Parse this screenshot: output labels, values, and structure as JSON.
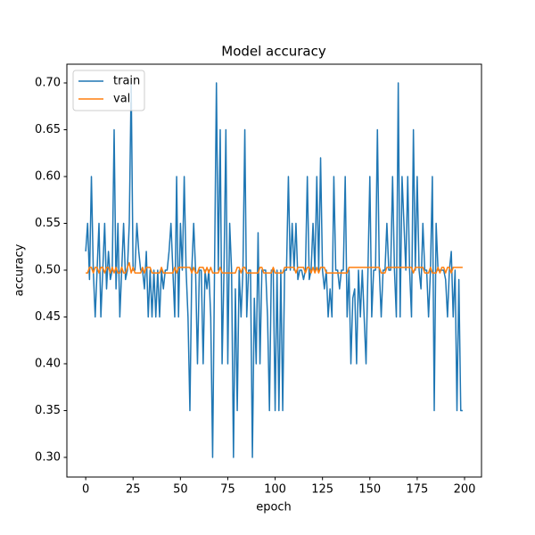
{
  "chart_data": {
    "type": "line",
    "title": "Model accuracy",
    "xlabel": "epoch",
    "ylabel": "accuracy",
    "x": [
      0,
      1,
      2,
      3,
      4,
      5,
      6,
      7,
      8,
      9,
      10,
      11,
      12,
      13,
      14,
      15,
      16,
      17,
      18,
      19,
      20,
      21,
      22,
      23,
      24,
      25,
      26,
      27,
      28,
      29,
      30,
      31,
      32,
      33,
      34,
      35,
      36,
      37,
      38,
      39,
      40,
      41,
      42,
      43,
      44,
      45,
      46,
      47,
      48,
      49,
      50,
      51,
      52,
      53,
      54,
      55,
      56,
      57,
      58,
      59,
      60,
      61,
      62,
      63,
      64,
      65,
      66,
      67,
      68,
      69,
      70,
      71,
      72,
      73,
      74,
      75,
      76,
      77,
      78,
      79,
      80,
      81,
      82,
      83,
      84,
      85,
      86,
      87,
      88,
      89,
      90,
      91,
      92,
      93,
      94,
      95,
      96,
      97,
      98,
      99,
      100,
      101,
      102,
      103,
      104,
      105,
      106,
      107,
      108,
      109,
      110,
      111,
      112,
      113,
      114,
      115,
      116,
      117,
      118,
      119,
      120,
      121,
      122,
      123,
      124,
      125,
      126,
      127,
      128,
      129,
      130,
      131,
      132,
      133,
      134,
      135,
      136,
      137,
      138,
      139,
      140,
      141,
      142,
      143,
      144,
      145,
      146,
      147,
      148,
      149,
      150,
      151,
      152,
      153,
      154,
      155,
      156,
      157,
      158,
      159,
      160,
      161,
      162,
      163,
      164,
      165,
      166,
      167,
      168,
      169,
      170,
      171,
      172,
      173,
      174,
      175,
      176,
      177,
      178,
      179,
      180,
      181,
      182,
      183,
      184,
      185,
      186,
      187,
      188,
      189,
      190,
      191,
      192,
      193,
      194,
      195,
      196,
      197,
      198,
      199
    ],
    "series": [
      {
        "name": "train",
        "color": "#1f77b4",
        "values": [
          0.52,
          0.55,
          0.49,
          0.6,
          0.5,
          0.45,
          0.5,
          0.55,
          0.45,
          0.5,
          0.55,
          0.48,
          0.52,
          0.49,
          0.5,
          0.65,
          0.48,
          0.55,
          0.45,
          0.5,
          0.55,
          0.49,
          0.5,
          0.55,
          0.7,
          0.5,
          0.5,
          0.55,
          0.52,
          0.5,
          0.5,
          0.48,
          0.52,
          0.45,
          0.5,
          0.45,
          0.5,
          0.45,
          0.5,
          0.45,
          0.5,
          0.48,
          0.5,
          0.5,
          0.52,
          0.55,
          0.5,
          0.45,
          0.6,
          0.45,
          0.55,
          0.5,
          0.6,
          0.5,
          0.45,
          0.35,
          0.5,
          0.55,
          0.5,
          0.4,
          0.5,
          0.5,
          0.4,
          0.5,
          0.48,
          0.5,
          0.45,
          0.3,
          0.5,
          0.7,
          0.5,
          0.65,
          0.4,
          0.5,
          0.65,
          0.4,
          0.55,
          0.5,
          0.3,
          0.48,
          0.35,
          0.5,
          0.45,
          0.5,
          0.65,
          0.45,
          0.5,
          0.5,
          0.3,
          0.47,
          0.4,
          0.54,
          0.4,
          0.5,
          0.5,
          0.5,
          0.45,
          0.35,
          0.5,
          0.5,
          0.35,
          0.5,
          0.35,
          0.5,
          0.35,
          0.5,
          0.5,
          0.6,
          0.5,
          0.55,
          0.5,
          0.55,
          0.49,
          0.5,
          0.5,
          0.49,
          0.5,
          0.6,
          0.49,
          0.5,
          0.55,
          0.5,
          0.6,
          0.5,
          0.62,
          0.5,
          0.48,
          0.5,
          0.45,
          0.48,
          0.45,
          0.6,
          0.5,
          0.5,
          0.48,
          0.5,
          0.5,
          0.6,
          0.45,
          0.5,
          0.4,
          0.47,
          0.48,
          0.4,
          0.5,
          0.45,
          0.5,
          0.45,
          0.4,
          0.5,
          0.6,
          0.45,
          0.5,
          0.5,
          0.65,
          0.5,
          0.45,
          0.5,
          0.5,
          0.55,
          0.5,
          0.5,
          0.6,
          0.5,
          0.45,
          0.7,
          0.45,
          0.6,
          0.55,
          0.5,
          0.6,
          0.5,
          0.45,
          0.65,
          0.5,
          0.6,
          0.5,
          0.48,
          0.55,
          0.5,
          0.5,
          0.45,
          0.5,
          0.6,
          0.35,
          0.55,
          0.5,
          0.5,
          0.5,
          0.5,
          0.49,
          0.45,
          0.5,
          0.52,
          0.45,
          0.5,
          0.35,
          0.49,
          0.35,
          0.35
        ]
      },
      {
        "name": "val",
        "color": "#ff7f0e",
        "values": [
          0.497,
          0.497,
          0.503,
          0.503,
          0.497,
          0.503,
          0.503,
          0.497,
          0.503,
          0.503,
          0.497,
          0.503,
          0.503,
          0.497,
          0.503,
          0.497,
          0.503,
          0.497,
          0.497,
          0.503,
          0.497,
          0.497,
          0.503,
          0.508,
          0.497,
          0.503,
          0.497,
          0.497,
          0.497,
          0.497,
          0.503,
          0.497,
          0.503,
          0.503,
          0.503,
          0.497,
          0.497,
          0.497,
          0.497,
          0.497,
          0.503,
          0.497,
          0.497,
          0.497,
          0.497,
          0.497,
          0.497,
          0.503,
          0.497,
          0.503,
          0.503,
          0.503,
          0.503,
          0.503,
          0.503,
          0.503,
          0.497,
          0.503,
          0.497,
          0.497,
          0.503,
          0.503,
          0.503,
          0.497,
          0.503,
          0.497,
          0.503,
          0.497,
          0.497,
          0.497,
          0.497,
          0.503,
          0.497,
          0.497,
          0.497,
          0.497,
          0.497,
          0.497,
          0.497,
          0.497,
          0.503,
          0.503,
          0.497,
          0.503,
          0.503,
          0.497,
          0.497,
          0.497,
          0.497,
          0.497,
          0.497,
          0.497,
          0.503,
          0.503,
          0.497,
          0.497,
          0.497,
          0.497,
          0.497,
          0.503,
          0.497,
          0.497,
          0.497,
          0.497,
          0.497,
          0.503,
          0.503,
          0.503,
          0.503,
          0.503,
          0.503,
          0.497,
          0.503,
          0.503,
          0.503,
          0.503,
          0.497,
          0.503,
          0.503,
          0.497,
          0.503,
          0.497,
          0.503,
          0.497,
          0.503,
          0.503,
          0.503,
          0.497,
          0.497,
          0.497,
          0.497,
          0.497,
          0.497,
          0.497,
          0.497,
          0.497,
          0.497,
          0.497,
          0.497,
          0.503,
          0.503,
          0.503,
          0.503,
          0.503,
          0.503,
          0.503,
          0.503,
          0.503,
          0.503,
          0.503,
          0.503,
          0.503,
          0.503,
          0.503,
          0.503,
          0.503,
          0.497,
          0.497,
          0.497,
          0.503,
          0.503,
          0.503,
          0.503,
          0.503,
          0.503,
          0.503,
          0.503,
          0.503,
          0.503,
          0.503,
          0.503,
          0.503,
          0.503,
          0.497,
          0.503,
          0.503,
          0.503,
          0.503,
          0.503,
          0.497,
          0.497,
          0.497,
          0.503,
          0.497,
          0.497,
          0.497,
          0.503,
          0.497,
          0.503,
          0.503,
          0.497,
          0.503,
          0.503,
          0.497,
          0.503,
          0.503,
          0.503,
          0.503,
          0.503,
          0.503
        ]
      }
    ],
    "xlim": [
      -9.95,
      208.95
    ],
    "ylim": [
      0.279,
      0.72
    ],
    "xticks": [
      0,
      25,
      50,
      75,
      100,
      125,
      150,
      175,
      200
    ],
    "yticks": [
      {
        "value": 0.3,
        "label": "0.30"
      },
      0.35,
      {
        "value": 0.4,
        "label": "0.40"
      },
      0.45,
      {
        "value": 0.5,
        "label": "0.50"
      },
      0.55,
      {
        "value": 0.6,
        "label": "0.60"
      },
      0.65,
      {
        "value": 0.7,
        "label": "0.70"
      }
    ],
    "legend": "upper left"
  }
}
